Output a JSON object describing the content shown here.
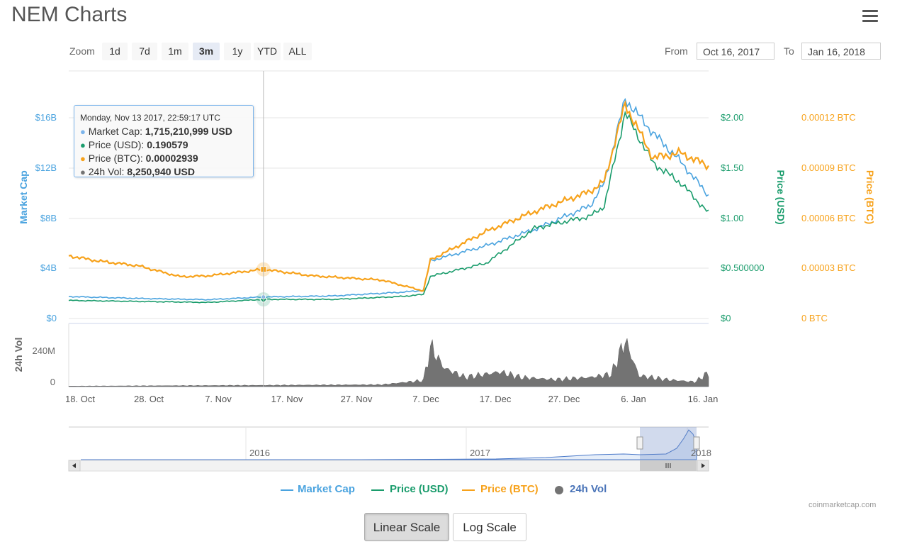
{
  "page": {
    "title": "NEM Charts",
    "menu_icon": "hamburger-menu-icon"
  },
  "zoom": {
    "label": "Zoom",
    "buttons": [
      "1d",
      "7d",
      "1m",
      "3m",
      "1y",
      "YTD",
      "ALL"
    ],
    "active": "3m"
  },
  "range": {
    "from_label": "From",
    "from_value": "Oct 16, 2017",
    "to_label": "To",
    "to_value": "Jan 16, 2018"
  },
  "tooltip": {
    "date": "Monday, Nov 13 2017, 22:59:17 UTC",
    "rows": [
      {
        "label": "Market Cap:",
        "value": "1,715,210,999 USD",
        "color": "#7cb5ec"
      },
      {
        "label": "Price (USD):",
        "value": "0.190579",
        "color": "#1a9c6c"
      },
      {
        "label": "Price (BTC):",
        "value": "0.00002939",
        "color": "#f7a21b"
      },
      {
        "label": "24h Vol:",
        "value": "8,250,940 USD",
        "color": "#737373"
      }
    ]
  },
  "legend": [
    {
      "name": "Market Cap",
      "color": "#4aa3df",
      "symbol": "line"
    },
    {
      "name": "Price (USD)",
      "color": "#1a9c6c",
      "symbol": "line"
    },
    {
      "name": "Price (BTC)",
      "color": "#f7a21b",
      "symbol": "line"
    },
    {
      "name": "24h Vol",
      "color": "#737373",
      "symbol": "circle"
    }
  ],
  "credit": "coinmarketcap.com",
  "scale_buttons": {
    "linear": "Linear Scale",
    "log": "Log Scale",
    "active": "linear"
  },
  "chart_data": {
    "type": "line",
    "x_range": [
      "2017-10-16",
      "2018-01-16"
    ],
    "x_ticks": [
      "18. Oct",
      "28. Oct",
      "7. Nov",
      "17. Nov",
      "27. Nov",
      "7. Dec",
      "17. Dec",
      "27. Dec",
      "6. Jan",
      "16. Jan"
    ],
    "axes": {
      "market_cap": {
        "label": "Market Cap",
        "ticks": [
          "$0",
          "$4B",
          "$8B",
          "$12B",
          "$16B"
        ],
        "range": [
          0,
          16000000000
        ],
        "color": "#4aa3df"
      },
      "price_usd": {
        "label": "Price (USD)",
        "ticks": [
          "$0",
          "$0.500000",
          "$1.00",
          "$1.50",
          "$2.00"
        ],
        "range": [
          0,
          2.0
        ],
        "color": "#1a9c6c"
      },
      "price_btc": {
        "label": "Price (BTC)",
        "ticks": [
          "0 BTC",
          "0.00003 BTC",
          "0.00006 BTC",
          "0.00009 BTC",
          "0.00012 BTC"
        ],
        "range": [
          0,
          0.00012
        ],
        "color": "#f7a21b"
      },
      "volume": {
        "label": "24h Vol",
        "ticks": [
          "0",
          "240M"
        ],
        "range": [
          0,
          240000000
        ],
        "color": "#737373"
      }
    },
    "series": [
      {
        "name": "Market Cap",
        "axis": "market_cap",
        "x": [
          "2017-10-16",
          "2017-10-26",
          "2017-11-05",
          "2017-11-13",
          "2017-11-23",
          "2017-12-03",
          "2017-12-06",
          "2017-12-07",
          "2017-12-15",
          "2017-12-22",
          "2017-12-30",
          "2018-01-01",
          "2018-01-04",
          "2018-01-08",
          "2018-01-12",
          "2018-01-16"
        ],
        "y": [
          1750000000.0,
          1600000000.0,
          1500000000.0,
          1715210999.0,
          1800000000.0,
          2100000000.0,
          2250000000.0,
          4600000000.0,
          5800000000.0,
          7100000000.0,
          9000000000.0,
          10800000000.0,
          17500000000.0,
          14800000000.0,
          12500000000.0,
          9800000000.0
        ]
      },
      {
        "name": "Price (USD)",
        "axis": "price_usd",
        "x": [
          "2017-10-16",
          "2017-10-26",
          "2017-11-05",
          "2017-11-13",
          "2017-11-23",
          "2017-12-03",
          "2017-12-06",
          "2017-12-07",
          "2017-12-15",
          "2017-12-22",
          "2017-12-30",
          "2018-01-01",
          "2018-01-04",
          "2018-01-08",
          "2018-01-12",
          "2018-01-16"
        ],
        "y": [
          0.18,
          0.17,
          0.16,
          0.190579,
          0.19,
          0.22,
          0.24,
          0.42,
          0.55,
          0.9,
          1.02,
          1.12,
          2.05,
          1.55,
          1.35,
          1.05
        ]
      },
      {
        "name": "Price (BTC)",
        "axis": "price_btc",
        "x": [
          "2017-10-16",
          "2017-10-20",
          "2017-10-26",
          "2017-11-01",
          "2017-11-05",
          "2017-11-13",
          "2017-11-20",
          "2017-11-30",
          "2017-12-06",
          "2017-12-07",
          "2017-12-15",
          "2017-12-22",
          "2017-12-30",
          "2018-01-01",
          "2018-01-04",
          "2018-01-08",
          "2018-01-12",
          "2018-01-16"
        ],
        "y": [
          3.75e-05,
          3.45e-05,
          3.15e-05,
          2.5e-05,
          2.55e-05,
          2.939e-05,
          2.55e-05,
          2.3e-05,
          1.65e-05,
          3.5e-05,
          5.2e-05,
          6.4e-05,
          7.6e-05,
          8.2e-05,
          0.000128,
          9.6e-05,
          9.9e-05,
          9.1e-05
        ]
      },
      {
        "name": "24h Vol",
        "axis": "volume",
        "x": [
          "2017-10-16",
          "2017-11-13",
          "2017-11-30",
          "2017-12-06",
          "2017-12-07",
          "2017-12-09",
          "2017-12-12",
          "2017-12-17",
          "2017-12-20",
          "2017-12-25",
          "2017-12-30",
          "2018-01-02",
          "2018-01-04",
          "2018-01-06",
          "2018-01-10",
          "2018-01-14",
          "2018-01-16"
        ],
        "y": [
          3000000,
          8250940,
          12000000,
          40000000,
          260000000,
          120000000,
          60000000,
          95000000,
          60000000,
          45000000,
          60000000,
          80000000,
          300000000,
          70000000,
          45000000,
          30000000,
          90000000
        ]
      }
    ],
    "navigator": {
      "labels": [
        "2016",
        "2017",
        "2018"
      ]
    },
    "legend_position": "bottom"
  }
}
